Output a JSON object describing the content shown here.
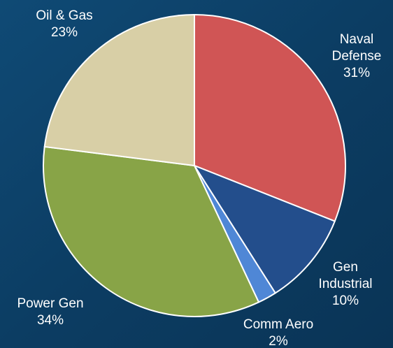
{
  "chart_data": {
    "type": "pie",
    "title": "",
    "slices": [
      {
        "label": [
          "Naval",
          "Defense"
        ],
        "pct_label": "31%",
        "value": 31,
        "color": "#d05555"
      },
      {
        "label": [
          "Gen",
          "Industrial"
        ],
        "pct_label": "10%",
        "value": 10,
        "color": "#234e8c"
      },
      {
        "label": [
          "Comm Aero"
        ],
        "pct_label": "2%",
        "value": 2,
        "color": "#4f87d6"
      },
      {
        "label": [
          "Power Gen"
        ],
        "pct_label": "34%",
        "value": 34,
        "color": "#88a447"
      },
      {
        "label": [
          "Oil & Gas"
        ],
        "pct_label": "23%",
        "value": 23,
        "color": "#d8cfa6"
      }
    ],
    "legend": "none"
  },
  "colors": {
    "background": "#0c3f66",
    "label_text": "#ffffff",
    "slice_border": "#ffffff"
  }
}
